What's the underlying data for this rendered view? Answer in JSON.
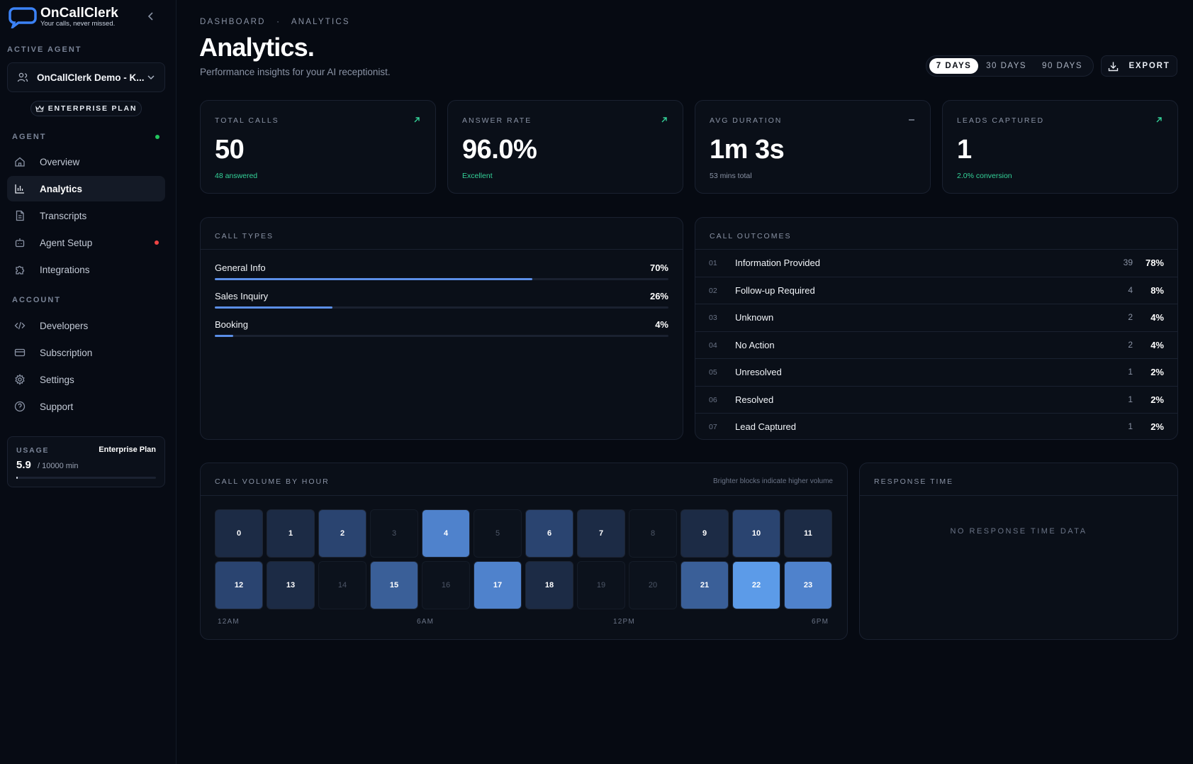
{
  "brand": {
    "name": "OnCallClerk",
    "tagline": "Your calls, never missed."
  },
  "sidebar": {
    "active_agent_label": "ACTIVE AGENT",
    "agent_name": "OnCallClerk Demo - K...",
    "plan_badge": "ENTERPRISE PLAN",
    "agent_section": "AGENT",
    "agent_status_color": "#22c55e",
    "account_section": "ACCOUNT",
    "agent_items": [
      {
        "label": "Overview",
        "icon": "home-icon"
      },
      {
        "label": "Analytics",
        "icon": "bar-chart-icon",
        "active": true
      },
      {
        "label": "Transcripts",
        "icon": "document-icon"
      },
      {
        "label": "Agent Setup",
        "icon": "robot-icon",
        "alert_color": "#ef4444"
      },
      {
        "label": "Integrations",
        "icon": "puzzle-icon"
      }
    ],
    "account_items": [
      {
        "label": "Developers",
        "icon": "code-icon"
      },
      {
        "label": "Subscription",
        "icon": "card-icon"
      },
      {
        "label": "Settings",
        "icon": "gear-icon"
      },
      {
        "label": "Support",
        "icon": "help-icon"
      }
    ],
    "usage": {
      "label": "USAGE",
      "plan": "Enterprise Plan",
      "value": "5.9",
      "max": "/ 10000 min",
      "fraction": 0.00059
    }
  },
  "header": {
    "breadcrumb": [
      "DASHBOARD",
      "·",
      "ANALYTICS"
    ],
    "title": "Analytics.",
    "subtitle": "Performance insights for your AI receptionist.",
    "ranges": [
      "7 DAYS",
      "30 DAYS",
      "90 DAYS"
    ],
    "active_range": "7 DAYS",
    "export_label": "EXPORT"
  },
  "stats": [
    {
      "label": "TOTAL CALLS",
      "value": "50",
      "sub": "48 answered",
      "sub_color": "#34d399",
      "trend": "up"
    },
    {
      "label": "ANSWER RATE",
      "value": "96.0%",
      "sub": "Excellent",
      "sub_color": "#34d399",
      "trend": "up"
    },
    {
      "label": "AVG DURATION",
      "value": "1m 3s",
      "sub": "53 mins total",
      "sub_color": "#8a93a5",
      "trend": "flat"
    },
    {
      "label": "LEADS CAPTURED",
      "value": "1",
      "sub": "2.0% conversion",
      "sub_color": "#34d399",
      "trend": "up"
    }
  ],
  "call_types": {
    "title": "CALL TYPES",
    "items": [
      {
        "name": "General Info",
        "pct": "70%",
        "value": 70
      },
      {
        "name": "Sales Inquiry",
        "pct": "26%",
        "value": 26
      },
      {
        "name": "Booking",
        "pct": "4%",
        "value": 4
      }
    ]
  },
  "call_outcomes": {
    "title": "CALL OUTCOMES",
    "items": [
      {
        "idx": "01",
        "name": "Information Provided",
        "count": "39",
        "pct": "78%"
      },
      {
        "idx": "02",
        "name": "Follow-up Required",
        "count": "4",
        "pct": "8%"
      },
      {
        "idx": "03",
        "name": "Unknown",
        "count": "2",
        "pct": "4%"
      },
      {
        "idx": "04",
        "name": "No Action",
        "count": "2",
        "pct": "4%"
      },
      {
        "idx": "05",
        "name": "Unresolved",
        "count": "1",
        "pct": "2%"
      },
      {
        "idx": "06",
        "name": "Resolved",
        "count": "1",
        "pct": "2%"
      },
      {
        "idx": "07",
        "name": "Lead Captured",
        "count": "1",
        "pct": "2%"
      }
    ]
  },
  "call_volume": {
    "title": "CALL VOLUME BY HOUR",
    "note": "Brighter blocks indicate higher volume",
    "hours": [
      {
        "h": "0",
        "level": 1
      },
      {
        "h": "1",
        "level": 1
      },
      {
        "h": "2",
        "level": 2
      },
      {
        "h": "3",
        "level": 0
      },
      {
        "h": "4",
        "level": 4
      },
      {
        "h": "5",
        "level": 0
      },
      {
        "h": "6",
        "level": 2
      },
      {
        "h": "7",
        "level": 1
      },
      {
        "h": "8",
        "level": 0
      },
      {
        "h": "9",
        "level": 1
      },
      {
        "h": "10",
        "level": 2
      },
      {
        "h": "11",
        "level": 1
      },
      {
        "h": "12",
        "level": 2
      },
      {
        "h": "13",
        "level": 1
      },
      {
        "h": "14",
        "level": 0
      },
      {
        "h": "15",
        "level": 3
      },
      {
        "h": "16",
        "level": 0
      },
      {
        "h": "17",
        "level": 4
      },
      {
        "h": "18",
        "level": 1
      },
      {
        "h": "19",
        "level": 0
      },
      {
        "h": "20",
        "level": 0
      },
      {
        "h": "21",
        "level": 3
      },
      {
        "h": "22",
        "level": 5
      },
      {
        "h": "23",
        "level": 4
      }
    ],
    "axis": [
      "12AM",
      "6AM",
      "12PM",
      "6PM"
    ],
    "level_colors": [
      "#0c121c",
      "#1c2b45",
      "#2a4470",
      "#3a5f98",
      "#4f82cc",
      "#5c9be8"
    ]
  },
  "response_time": {
    "title": "RESPONSE TIME",
    "empty": "NO RESPONSE TIME DATA"
  }
}
